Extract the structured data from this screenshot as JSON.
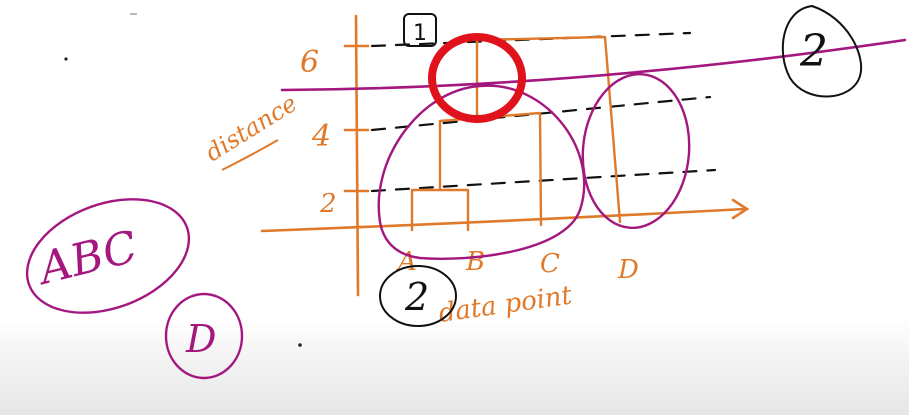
{
  "board": {
    "y_ticks": [
      "6",
      "4",
      "2"
    ],
    "x_labels": [
      "A",
      "B",
      "C",
      "D"
    ],
    "axis_label_y": "distance",
    "axis_label_x": "data point",
    "group_left": "ABC",
    "group_right": "D",
    "marker_1": "1",
    "marker_2_top": "2",
    "marker_2_bottom": "2"
  },
  "colors": {
    "orange": "#e07a2a",
    "magenta": "#a4177e",
    "red": "#e0121b",
    "ink": "#111111"
  }
}
